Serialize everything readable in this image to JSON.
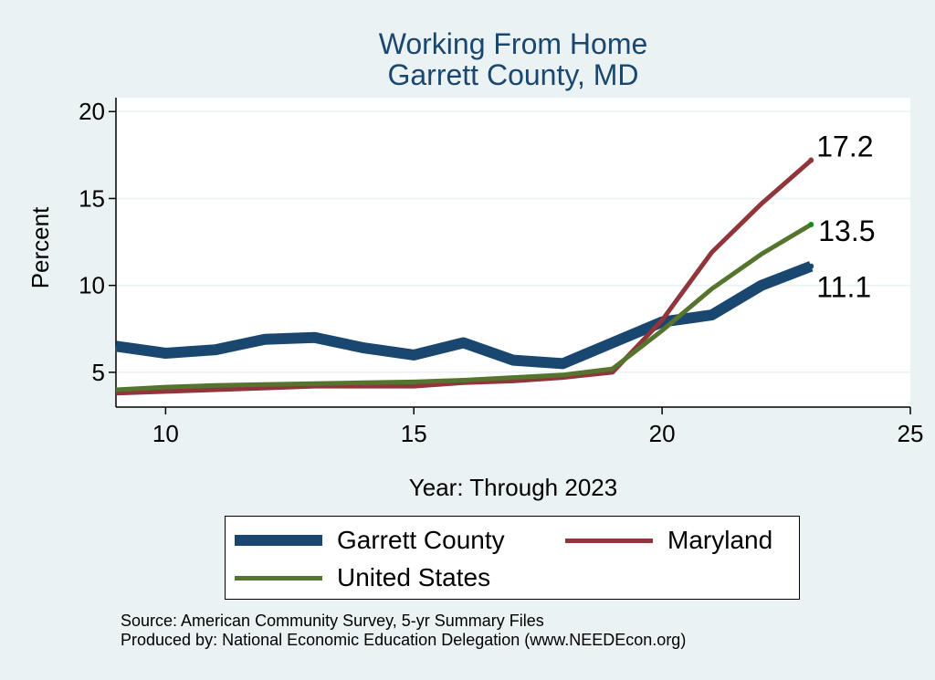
{
  "chart_data": {
    "type": "line",
    "title": [
      "Working From Home",
      "Garrett County, MD"
    ],
    "xlabel": "Year: Through 2023",
    "ylabel": "Percent",
    "xlim": [
      9,
      25
    ],
    "ylim": [
      3,
      20.8
    ],
    "xticks": [
      10,
      15,
      20,
      25
    ],
    "yticks": [
      5,
      10,
      15,
      20
    ],
    "grid": true,
    "legend_position": "bottom",
    "series": [
      {
        "name": "Garrett County",
        "color": "#1a476f",
        "x": [
          9,
          10,
          11,
          12,
          13,
          14,
          15,
          16,
          17,
          18,
          19,
          20,
          21,
          22,
          23
        ],
        "values": [
          6.5,
          6.1,
          6.3,
          6.9,
          7.0,
          6.4,
          6.0,
          6.7,
          5.7,
          5.5,
          6.7,
          7.9,
          8.3,
          10.0,
          11.1
        ],
        "end_label": "11.1"
      },
      {
        "name": "Maryland",
        "color": "#90353b",
        "x": [
          9,
          10,
          11,
          12,
          13,
          14,
          15,
          16,
          17,
          18,
          19,
          20,
          21,
          22,
          23
        ],
        "values": [
          3.8,
          3.9,
          4.0,
          4.1,
          4.2,
          4.2,
          4.2,
          4.4,
          4.5,
          4.7,
          5.0,
          8.0,
          11.9,
          14.7,
          17.2
        ],
        "end_label": "17.2"
      },
      {
        "name": "United States",
        "color": "#55752f",
        "x": [
          9,
          10,
          11,
          12,
          13,
          14,
          15,
          16,
          17,
          18,
          19,
          20,
          21,
          22,
          23
        ],
        "values": [
          4.0,
          4.15,
          4.25,
          4.3,
          4.35,
          4.4,
          4.45,
          4.55,
          4.7,
          4.85,
          5.2,
          7.4,
          9.8,
          11.8,
          13.5
        ],
        "end_label": "13.5"
      }
    ]
  },
  "source_note": [
    "Source: American Community Survey, 5-yr Summary Files",
    "Produced by: National Economic Education Delegation (www.NEEDEcon.org)"
  ]
}
